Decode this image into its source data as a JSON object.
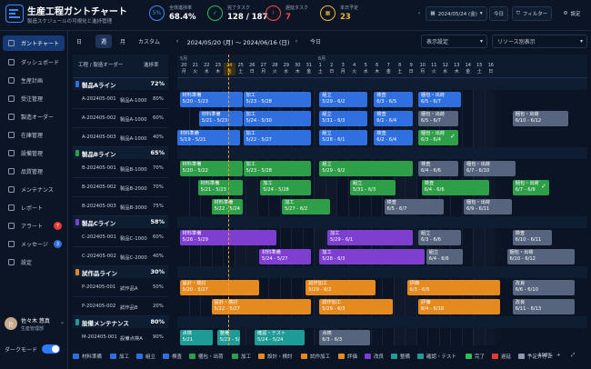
{
  "app": {
    "title": "生産工程ガントチャート",
    "subtitle": "製造スケジュールの可視化と進捗管理"
  },
  "kpis": [
    {
      "icon_text": "5%",
      "label": "全体進捗率",
      "value": "68.4%",
      "color": "#ffffff",
      "ring": "#3d8cff"
    },
    {
      "icon_text": "✓",
      "label": "完了タスク",
      "value": "128 / 187",
      "color": "#ffffff",
      "ring": "#2ebd59"
    },
    {
      "icon_text": "!",
      "label": "遅延タスク",
      "value": "7",
      "color": "#ff4a4a",
      "ring": "#ff4a4a"
    },
    {
      "icon_text": "▦",
      "label": "本日予定",
      "value": "23",
      "color": "#f0b63a",
      "ring": "#f0b63a"
    }
  ],
  "topbar": {
    "date": "2024/05/24 (金)",
    "today": "今日",
    "filter": "フィルター",
    "settings": "設定"
  },
  "sidebar": {
    "items": [
      {
        "label": "ガントチャート",
        "active": true
      },
      {
        "label": "ダッシュボード"
      },
      {
        "label": "生産計画"
      },
      {
        "label": "受注管理"
      },
      {
        "label": "製造オーダー"
      },
      {
        "label": "在庫管理"
      },
      {
        "label": "設備管理"
      },
      {
        "label": "品質管理"
      },
      {
        "label": "メンテナンス"
      },
      {
        "label": "レポート"
      },
      {
        "label": "アラート",
        "badge": "7",
        "badge_color": "#e53935"
      },
      {
        "label": "メッセージ",
        "badge": "3",
        "badge_color": "#2f6fe0"
      },
      {
        "label": "設定"
      }
    ]
  },
  "user": {
    "name": "佐々木 悠真",
    "role": "生産管理部",
    "initial": "佐"
  },
  "darkmode": "ダークモード",
  "controls": {
    "views": [
      "日",
      "週",
      "月",
      "カスタム"
    ],
    "active_view": 1,
    "range": "2024/05/20 (月)  〜  2024/06/16 (日)",
    "today": "今日",
    "display": "表示設定",
    "resource": "リソース別表示"
  },
  "table": {
    "col_order": "工程 / 製造オーダー",
    "col_progress": "進捗率"
  },
  "timeline": {
    "month_may": "5月",
    "month_jun": "6月",
    "days": [
      [
        "20",
        "月"
      ],
      [
        "21",
        "火"
      ],
      [
        "22",
        "水"
      ],
      [
        "23",
        "木"
      ],
      [
        "24",
        "金"
      ],
      [
        "25",
        "土"
      ],
      [
        "26",
        "日"
      ],
      [
        "27",
        "月"
      ],
      [
        "28",
        "火"
      ],
      [
        "29",
        "水"
      ],
      [
        "30",
        "木"
      ],
      [
        "31",
        "金"
      ],
      [
        "1",
        "土"
      ],
      [
        "2",
        "日"
      ],
      [
        "3",
        "月"
      ],
      [
        "4",
        "火"
      ],
      [
        "5",
        "水"
      ],
      [
        "6",
        "木"
      ],
      [
        "7",
        "金"
      ],
      [
        "8",
        "土"
      ],
      [
        "9",
        "日"
      ],
      [
        "10",
        "月"
      ],
      [
        "11",
        "火"
      ],
      [
        "12",
        "水"
      ],
      [
        "13",
        "木"
      ],
      [
        "14",
        "金"
      ],
      [
        "15",
        "土"
      ],
      [
        "16",
        "日"
      ]
    ],
    "today_index": 4
  },
  "groups": [
    {
      "name": "製品Aライン",
      "progress": "72%",
      "color": "#2f6fe0",
      "rows": [
        {
          "order": "A-202405-001",
          "product": "製品A-1000",
          "progress": "80%"
        },
        {
          "order": "A-202405-002",
          "product": "製品A-1000",
          "progress": "60%"
        },
        {
          "order": "A-202405-003",
          "product": "製品A-1000",
          "progress": "40%"
        }
      ]
    },
    {
      "name": "製品Bライン",
      "progress": "65%",
      "color": "#2e9e48",
      "rows": [
        {
          "order": "B-202405-001",
          "product": "製品B-1000",
          "progress": "70%"
        },
        {
          "order": "B-202405-002",
          "product": "製品B-2000",
          "progress": "70%"
        },
        {
          "order": "B-202405-003",
          "product": "製品B-3000",
          "progress": "75%"
        }
      ]
    },
    {
      "name": "製品Cライン",
      "progress": "58%",
      "color": "#7e3fd0",
      "rows": [
        {
          "order": "C-202405-001",
          "product": "製品C-1000",
          "progress": "60%"
        },
        {
          "order": "C-202405-002",
          "product": "製品C-2000",
          "progress": "40%"
        }
      ]
    },
    {
      "name": "試作品ライン",
      "progress": "30%",
      "color": "#e58a1f",
      "rows": [
        {
          "order": "P-202405-001",
          "product": "試作品A",
          "progress": "50%"
        },
        {
          "order": "P-202405-002",
          "product": "試作品B",
          "progress": "20%"
        }
      ]
    },
    {
      "name": "設備メンテナンス",
      "progress": "80%",
      "color": "#1f9b95",
      "rows": [
        {
          "order": "M-202405-001",
          "product": "設備点検A",
          "progress": "90%"
        },
        {
          "order": "M-202405-002",
          "product": "設備点検B",
          "progress": "80%"
        }
      ]
    }
  ],
  "bars": [
    {
      "row": 0,
      "start": 0.2,
      "end": 5.8,
      "label": "材料準備",
      "dates": "5/20 - 5/23",
      "color": "#2f6fe0"
    },
    {
      "row": 0,
      "start": 5.8,
      "end": 11.8,
      "label": "加工",
      "dates": "5/23 - 5/28",
      "color": "#2f6fe0"
    },
    {
      "row": 0,
      "start": 12.5,
      "end": 16.8,
      "label": "組立",
      "dates": "5/29 - 6/2",
      "color": "#2f6fe0"
    },
    {
      "row": 0,
      "start": 17.3,
      "end": 20.8,
      "label": "検査",
      "dates": "6/3 - 6/5",
      "color": "#2f6fe0"
    },
    {
      "row": 0,
      "start": 21.2,
      "end": 25.0,
      "label": "梱包・出荷",
      "dates": "6/5 - 6/7",
      "color": "#2f6fe0"
    },
    {
      "row": 1,
      "start": 1.9,
      "end": 5.8,
      "label": "材料準備",
      "dates": "5/21 - 5/23",
      "color": "#2f6fe0"
    },
    {
      "row": 1,
      "start": 5.8,
      "end": 11.8,
      "label": "加工",
      "dates": "5/24 - 5/30",
      "color": "#2f6fe0"
    },
    {
      "row": 1,
      "start": 12.5,
      "end": 16.8,
      "label": "組立",
      "dates": "5/31 - 6/3",
      "color": "#2f6fe0"
    },
    {
      "row": 1,
      "start": 17.3,
      "end": 20.8,
      "label": "検査",
      "dates": "6/1 - 6/4",
      "color": "#2f6fe0"
    },
    {
      "row": 1,
      "start": 21.2,
      "end": 24.8,
      "label": "梱包・出荷",
      "dates": "6/5 - 6/7",
      "color": "#56657d"
    },
    {
      "row": 1,
      "start": 29.5,
      "end": 34.5,
      "label": "梱包・出荷",
      "dates": "6/10 - 6/12",
      "color": "#56657d"
    },
    {
      "row": 2,
      "start": -0.2,
      "end": 5.6,
      "label": "材料準備",
      "dates": "5/19 - 5/21",
      "color": "#2f6fe0"
    },
    {
      "row": 2,
      "start": 5.8,
      "end": 11.8,
      "label": "加工",
      "dates": "5/22 - 5/27",
      "color": "#2f6fe0"
    },
    {
      "row": 2,
      "start": 12.5,
      "end": 16.8,
      "label": "組立",
      "dates": "5/28 - 6/1",
      "color": "#2f6fe0"
    },
    {
      "row": 2,
      "start": 17.3,
      "end": 20.8,
      "label": "検査",
      "dates": "6/2 - 6/4",
      "color": "#2f6fe0"
    },
    {
      "row": 2,
      "start": 21.2,
      "end": 24.8,
      "label": "梱包・出荷",
      "dates": "6/3 - 6/4",
      "color": "#2e9e48",
      "check": true
    },
    {
      "row": 3,
      "start": 0.2,
      "end": 5.8,
      "label": "材料準備",
      "dates": "5/20 - 5/22",
      "color": "#2e9e48"
    },
    {
      "row": 3,
      "start": 5.8,
      "end": 11.8,
      "label": "加工",
      "dates": "5/23 - 5/28",
      "color": "#2e9e48"
    },
    {
      "row": 3,
      "start": 12.5,
      "end": 20.8,
      "label": "組立",
      "dates": "5/29 - 6/2",
      "color": "#2e9e48"
    },
    {
      "row": 3,
      "start": 21.2,
      "end": 24.8,
      "label": "検査",
      "dates": "6/4 - 6/6",
      "color": "#56657d"
    },
    {
      "row": 3,
      "start": 25.2,
      "end": 29.8,
      "label": "梱包・出荷",
      "dates": "6/7 - 6/10",
      "color": "#56657d"
    },
    {
      "row": 4,
      "start": 1.8,
      "end": 5.8,
      "label": "材料準備",
      "dates": "5/21 - 5/23",
      "color": "#2e9e48"
    },
    {
      "row": 4,
      "start": 7.3,
      "end": 11.8,
      "label": "加工",
      "dates": "5/24 - 5/28",
      "color": "#2e9e48"
    },
    {
      "row": 4,
      "start": 15.2,
      "end": 19.3,
      "label": "組立",
      "dates": "5/31 - 6/3",
      "color": "#2e9e48"
    },
    {
      "row": 4,
      "start": 21.5,
      "end": 27.5,
      "label": "検査",
      "dates": "6/4 - 6/6",
      "color": "#2e9e48"
    },
    {
      "row": 4,
      "start": 29.5,
      "end": 32.8,
      "label": "梱包・出荷",
      "dates": "6/7 - 6/9",
      "color": "#2e9e48",
      "check": true
    },
    {
      "row": 5,
      "start": 3.0,
      "end": 5.8,
      "label": "材料準備",
      "dates": "5/22 - 5/24",
      "color": "#2e9e48"
    },
    {
      "row": 5,
      "start": 9.2,
      "end": 13.5,
      "label": "加工",
      "dates": "5/27 - 6/2",
      "color": "#2e9e48"
    },
    {
      "row": 5,
      "start": 18.2,
      "end": 23.5,
      "label": "検査",
      "dates": "6/5 - 6/7",
      "color": "#56657d"
    },
    {
      "row": 5,
      "start": 25.2,
      "end": 29.5,
      "label": "梱包・出荷",
      "dates": "6/9 - 6/11",
      "color": "#56657d"
    },
    {
      "row": 6,
      "start": 0.2,
      "end": 8.8,
      "label": "材料準備",
      "dates": "5/26 - 5/29",
      "color": "#7e3fd0"
    },
    {
      "row": 6,
      "start": 13.2,
      "end": 20.8,
      "label": "加工",
      "dates": "5/29 - 6/1",
      "color": "#7e3fd0"
    },
    {
      "row": 6,
      "start": 21.2,
      "end": 25.0,
      "label": "組立",
      "dates": "6/3 - 6/6",
      "color": "#56657d"
    },
    {
      "row": 6,
      "start": 29.5,
      "end": 33.0,
      "label": "検査",
      "dates": "6/10 - 6/11",
      "color": "#56657d"
    },
    {
      "row": 7,
      "start": 7.2,
      "end": 11.8,
      "label": "材料準備",
      "dates": "5/24 - 5/27",
      "color": "#7e3fd0"
    },
    {
      "row": 7,
      "start": 12.5,
      "end": 21.8,
      "label": "加工",
      "dates": "5/28 - 6/3",
      "color": "#7e3fd0"
    },
    {
      "row": 7,
      "start": 21.9,
      "end": 25.2,
      "label": "組立",
      "dates": "6/4 - 6/6",
      "color": "#56657d"
    },
    {
      "row": 7,
      "start": 29.0,
      "end": 35.0,
      "label": "梱包・出荷",
      "dates": "6/10 - 6/12",
      "color": "#56657d"
    },
    {
      "row": 8,
      "start": 0.2,
      "end": 7.3,
      "label": "設計・検討",
      "dates": "5/20 - 5/27",
      "color": "#e58a1f"
    },
    {
      "row": 8,
      "start": 11.3,
      "end": 17.5,
      "label": "試作加工",
      "dates": "5/29 - 6/2",
      "color": "#e58a1f"
    },
    {
      "row": 8,
      "start": 20.2,
      "end": 28.5,
      "label": "評価",
      "dates": "6/3 - 6/5",
      "color": "#e58a1f"
    },
    {
      "row": 8,
      "start": 29.5,
      "end": 35.0,
      "label": "改良",
      "dates": "6/6 - 6/10",
      "color": "#56657d"
    },
    {
      "row": 9,
      "start": 3.0,
      "end": 11.8,
      "label": "設計・検討",
      "dates": "5/22 - 5/27",
      "color": "#e58a1f"
    },
    {
      "row": 9,
      "start": 12.5,
      "end": 19.0,
      "label": "試作加工",
      "dates": "5/29 - 6/3",
      "color": "#e58a1f"
    },
    {
      "row": 9,
      "start": 21.2,
      "end": 28.5,
      "label": "評価",
      "dates": "6/4 - 6/10",
      "color": "#e58a1f"
    },
    {
      "row": 9,
      "start": 29.5,
      "end": 35.0,
      "label": "改良",
      "dates": "6/11 - 6/13",
      "color": "#56657d"
    },
    {
      "row": 10,
      "start": 0.2,
      "end": 3.2,
      "label": "点検",
      "dates": "5/21",
      "color": "#1f9b95"
    },
    {
      "row": 10,
      "start": 3.5,
      "end": 5.6,
      "label": "整備",
      "dates": "5/23 - 5/24",
      "color": "#1f9b95"
    },
    {
      "row": 10,
      "start": 6.8,
      "end": 11.3,
      "label": "確認・テスト",
      "dates": "5/24 - 5/24",
      "color": "#1f9b95"
    },
    {
      "row": 10,
      "start": 12.5,
      "end": 17.0,
      "label": "点検",
      "dates": "6/3 - 6/3",
      "color": "#56657d"
    },
    {
      "row": 11,
      "start": 0.2,
      "end": 3.0,
      "label": "点検",
      "dates": "5/21 - 5/23",
      "color": "#1f9b95"
    },
    {
      "row": 11,
      "start": 8.8,
      "end": 13.5,
      "label": "整備",
      "dates": "5/27 - 5/28",
      "color": "#1f9b95"
    },
    {
      "row": 11,
      "start": 16.8,
      "end": 19.8,
      "label": "点検",
      "dates": "6/1",
      "color": "#56657d"
    },
    {
      "row": 11,
      "start": 21.0,
      "end": 26.0,
      "label": "確認・テスト",
      "dates": "6/1 - 6/2",
      "color": "#1f9b95",
      "check": true
    }
  ],
  "legend": [
    {
      "label": "材料準備",
      "color": "#2f6fe0"
    },
    {
      "label": "加工",
      "color": "#2f6fe0"
    },
    {
      "label": "組立",
      "color": "#2f6fe0"
    },
    {
      "label": "検査",
      "color": "#2f6fe0"
    },
    {
      "label": "梱包・出荷",
      "color": "#2e9e48"
    },
    {
      "label": "加工",
      "color": "#2e9e48"
    },
    {
      "label": "設計・検討",
      "color": "#e58a1f"
    },
    {
      "label": "試作加工",
      "color": "#e58a1f"
    },
    {
      "label": "評価",
      "color": "#e58a1f"
    },
    {
      "label": "改良",
      "color": "#7e3fd0"
    },
    {
      "label": "整備",
      "color": "#1f9b95"
    },
    {
      "label": "確認・テスト",
      "color": "#1f9b95"
    },
    {
      "label": "完了",
      "color": "#2ebd59"
    },
    {
      "label": "遅延",
      "color": "#e53935"
    },
    {
      "label": "予定外停止",
      "color": "#8c9ab0"
    }
  ],
  "zoom": "100%"
}
